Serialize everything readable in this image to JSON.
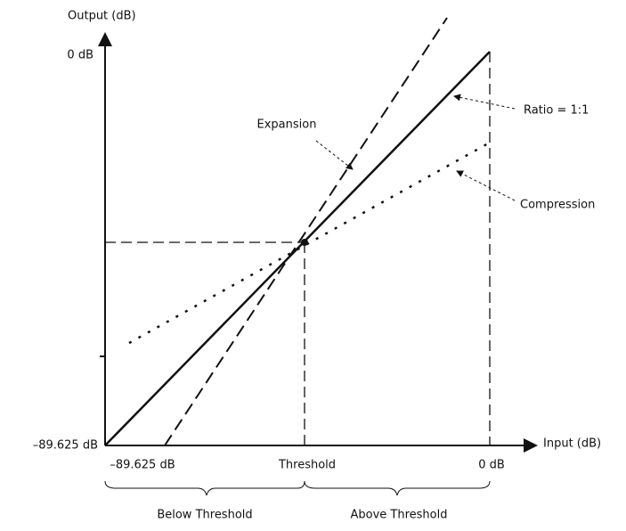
{
  "axes": {
    "y_label": "Output (dB)",
    "y_max": "0 dB",
    "y_min": "–89.625 dB",
    "x_label": "Input (dB)",
    "x_min": "–89.625 dB",
    "x_threshold": "Threshold",
    "x_max": "0 dB"
  },
  "annotations": {
    "expansion": "Expansion",
    "ratio": "Ratio = 1:1",
    "compression": "Compression"
  },
  "regions": {
    "below": "Below Threshold",
    "above": "Above Threshold"
  }
}
